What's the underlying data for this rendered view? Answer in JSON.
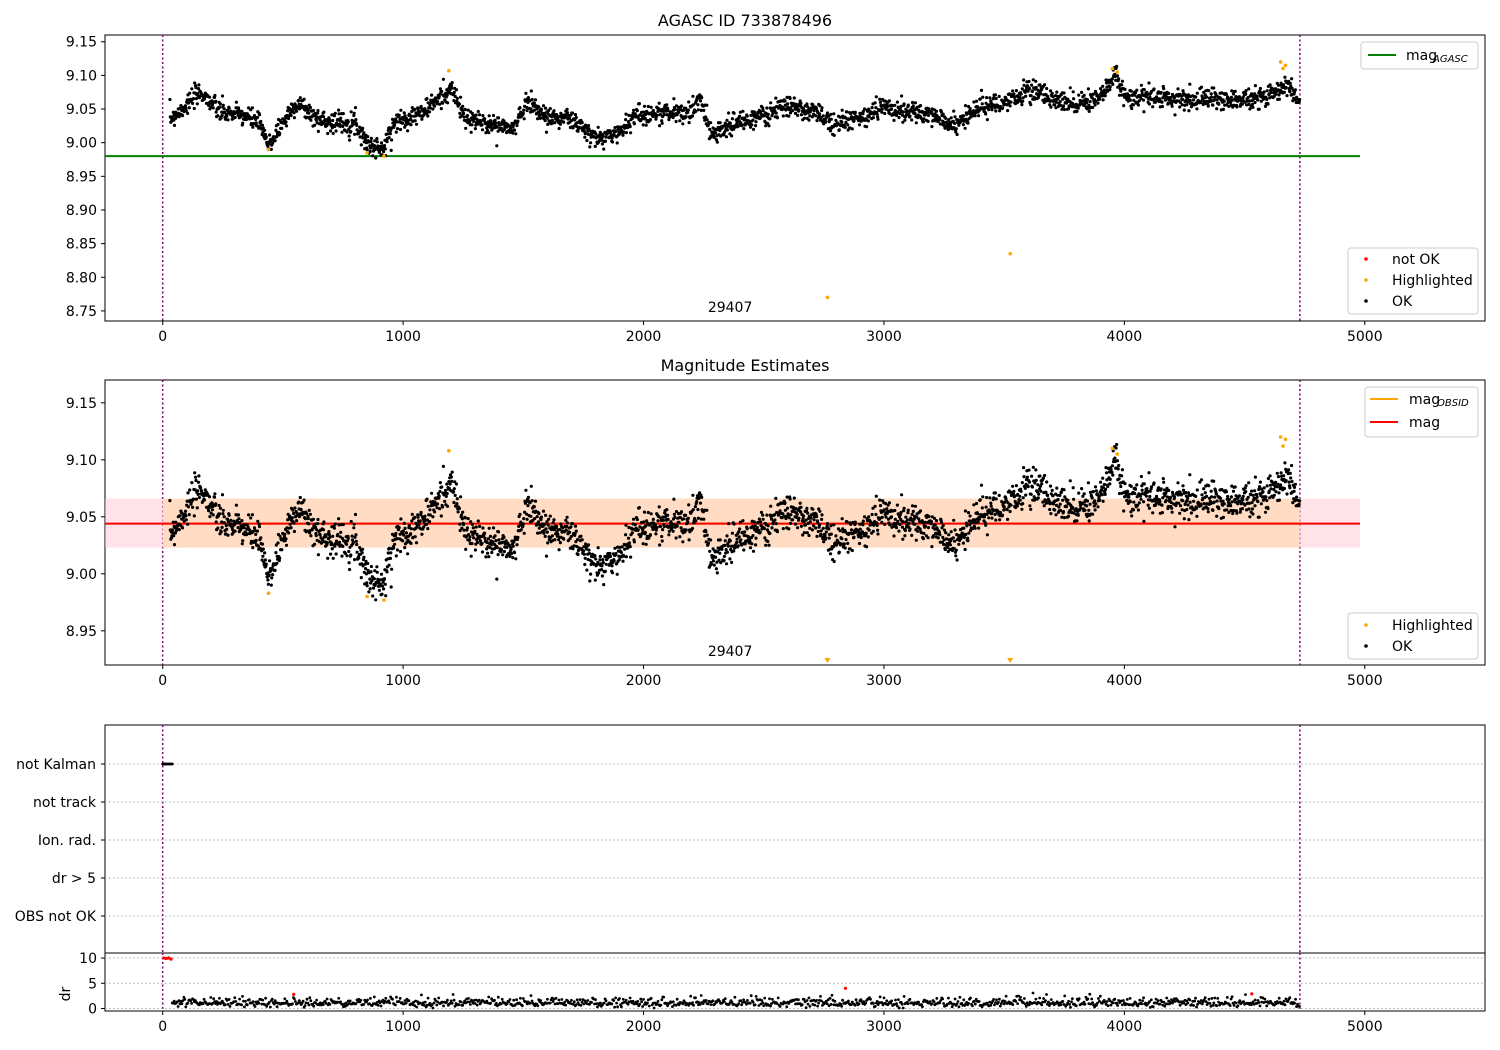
{
  "chart_data": [
    {
      "type": "scatter",
      "title": "AGASC ID 733878496",
      "xlim": [
        -240,
        5500
      ],
      "ylim": [
        8.735,
        9.16
      ],
      "x_ticks": [
        "0",
        "1000",
        "2000",
        "3000",
        "4000",
        "5000"
      ],
      "x_tick_values": [
        0,
        1000,
        2000,
        3000,
        4000,
        5000
      ],
      "y_ticks": [
        "8.75",
        "8.80",
        "8.85",
        "8.90",
        "8.95",
        "9.00",
        "9.05",
        "9.10",
        "9.15"
      ],
      "y_tick_values": [
        8.75,
        8.8,
        8.85,
        8.9,
        8.95,
        9.0,
        9.05,
        9.1,
        9.15
      ],
      "obsid_boundaries": [
        0,
        4730
      ],
      "obsid_label": "29407",
      "obsid_label_x": 2360,
      "mag_agasc": {
        "value": 8.98,
        "x_range": [
          -240,
          4980
        ],
        "color": "#008000"
      },
      "series": [
        {
          "name": "not OK",
          "color": "#ff0000",
          "points": []
        },
        {
          "name": "Highlighted",
          "color": "#ffa500",
          "points": [
            [
              440,
              8.99
            ],
            [
              850,
              8.985
            ],
            [
              920,
              8.98
            ],
            [
              1190,
              9.107
            ],
            [
              2765,
              8.77
            ],
            [
              3525,
              8.835
            ],
            [
              3950,
              9.11
            ],
            [
              3970,
              9.105
            ],
            [
              4650,
              9.12
            ],
            [
              4660,
              9.11
            ],
            [
              4670,
              9.115
            ]
          ]
        },
        {
          "name": "OK",
          "color": "#000000"
        }
      ],
      "ok_trend": [
        [
          30,
          9.035
        ],
        [
          160,
          9.075
        ],
        [
          240,
          9.045
        ],
        [
          340,
          9.04
        ],
        [
          400,
          9.03
        ],
        [
          440,
          8.995
        ],
        [
          480,
          9.02
        ],
        [
          560,
          9.06
        ],
        [
          640,
          9.035
        ],
        [
          720,
          9.03
        ],
        [
          800,
          9.03
        ],
        [
          860,
          8.995
        ],
        [
          920,
          8.99
        ],
        [
          960,
          9.03
        ],
        [
          1080,
          9.045
        ],
        [
          1200,
          9.08
        ],
        [
          1260,
          9.035
        ],
        [
          1400,
          9.025
        ],
        [
          1460,
          9.02
        ],
        [
          1520,
          9.065
        ],
        [
          1580,
          9.04
        ],
        [
          1700,
          9.035
        ],
        [
          1800,
          9.005
        ],
        [
          1900,
          9.015
        ],
        [
          1960,
          9.04
        ],
        [
          2100,
          9.045
        ],
        [
          2200,
          9.045
        ],
        [
          2240,
          9.065
        ],
        [
          2280,
          9.015
        ],
        [
          2400,
          9.03
        ],
        [
          2500,
          9.04
        ],
        [
          2600,
          9.055
        ],
        [
          2700,
          9.045
        ],
        [
          2800,
          9.03
        ],
        [
          2900,
          9.035
        ],
        [
          3000,
          9.055
        ],
        [
          3100,
          9.045
        ],
        [
          3200,
          9.04
        ],
        [
          3300,
          9.025
        ],
        [
          3400,
          9.055
        ],
        [
          3500,
          9.055
        ],
        [
          3600,
          9.08
        ],
        [
          3700,
          9.065
        ],
        [
          3800,
          9.06
        ],
        [
          3900,
          9.065
        ],
        [
          3960,
          9.1
        ],
        [
          4000,
          9.07
        ],
        [
          4200,
          9.065
        ],
        [
          4400,
          9.065
        ],
        [
          4560,
          9.065
        ],
        [
          4680,
          9.085
        ],
        [
          4730,
          9.06
        ]
      ],
      "legend_lines": [
        {
          "label": "mag",
          "sub": "AGASC",
          "color": "#008000"
        }
      ],
      "legend_points": [
        {
          "label": "not OK",
          "color": "#ff0000"
        },
        {
          "label": "Highlighted",
          "color": "#ffa500"
        },
        {
          "label": "OK",
          "color": "#000000"
        }
      ]
    },
    {
      "type": "scatter",
      "title": "Magnitude Estimates",
      "xlim": [
        -240,
        5500
      ],
      "ylim": [
        8.92,
        9.17
      ],
      "x_ticks": [
        "0",
        "1000",
        "2000",
        "3000",
        "4000",
        "5000"
      ],
      "x_tick_values": [
        0,
        1000,
        2000,
        3000,
        4000,
        5000
      ],
      "y_ticks": [
        "8.95",
        "9.00",
        "9.05",
        "9.10",
        "9.15"
      ],
      "y_tick_values": [
        8.95,
        9.0,
        9.05,
        9.1,
        9.15
      ],
      "obsid_boundaries": [
        0,
        4730
      ],
      "obsid_label": "29407",
      "obsid_label_x": 2360,
      "mag": {
        "value": 9.044,
        "x_range": [
          -240,
          4980
        ],
        "color": "#ff0000"
      },
      "mag_obsid": {
        "value": 9.044,
        "x_range": [
          0,
          4730
        ],
        "color": "#ffa500"
      },
      "band_outer": {
        "low": 9.023,
        "high": 9.066,
        "x_range": [
          -240,
          4980
        ],
        "color": "#ffc0cb"
      },
      "band_inner": {
        "low": 9.023,
        "high": 9.066,
        "x_range": [
          0,
          4730
        ],
        "color": "#ffdab9"
      },
      "series": [
        {
          "name": "Highlighted",
          "color": "#ffa500",
          "points": [
            [
              440,
              8.983
            ],
            [
              850,
              8.98
            ],
            [
              920,
              8.977
            ],
            [
              1190,
              9.108
            ],
            [
              3950,
              9.11
            ],
            [
              3970,
              9.105
            ],
            [
              4650,
              9.12
            ],
            [
              4660,
              9.112
            ],
            [
              4670,
              9.118
            ]
          ]
        },
        {
          "name": "OK",
          "color": "#000000"
        }
      ],
      "offscale_markers": [
        [
          2765,
          "v"
        ],
        [
          3525,
          "v"
        ]
      ],
      "legend_lines": [
        {
          "label": "mag",
          "sub": "OBSID",
          "color": "#ffa500"
        },
        {
          "label": "mag",
          "sub": "",
          "color": "#ff0000"
        }
      ],
      "legend_points": [
        {
          "label": "Highlighted",
          "color": "#ffa500"
        },
        {
          "label": "OK",
          "color": "#000000"
        }
      ]
    },
    {
      "type": "scatter",
      "title": "",
      "xlim": [
        -240,
        5500
      ],
      "categories": [
        "not Kalman",
        "not track",
        "Ion. rad.",
        "dr > 5",
        "OBS not OK"
      ],
      "obsid_boundaries": [
        0,
        4730
      ],
      "flags": [
        {
          "category": "not Kalman",
          "x_range": [
            0,
            40
          ],
          "color": "#000000"
        }
      ]
    },
    {
      "type": "scatter",
      "title": "",
      "xlim": [
        -240,
        5500
      ],
      "ylim": [
        -0.5,
        11
      ],
      "ylabel": "dr",
      "x_ticks": [
        "0",
        "1000",
        "2000",
        "3000",
        "4000",
        "5000"
      ],
      "x_tick_values": [
        0,
        1000,
        2000,
        3000,
        4000,
        5000
      ],
      "y_ticks": [
        "0",
        "5",
        "10"
      ],
      "y_tick_values": [
        0,
        5,
        10
      ],
      "obsid_boundaries": [
        0,
        4730
      ],
      "series": [
        {
          "name": "OK",
          "color": "#000000"
        },
        {
          "name": "not OK",
          "color": "#ff0000",
          "points": [
            [
              5,
              10
            ],
            [
              15,
              9.9
            ],
            [
              25,
              10
            ],
            [
              35,
              9.8
            ],
            [
              545,
              2.8
            ],
            [
              2840,
              4.0
            ],
            [
              4530,
              2.9
            ]
          ]
        }
      ]
    }
  ]
}
